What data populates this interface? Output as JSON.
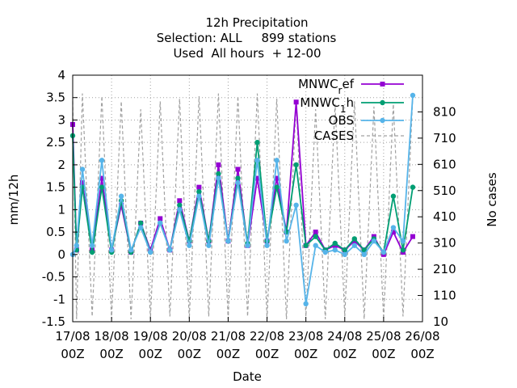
{
  "chart_data": {
    "type": "line",
    "title_lines": [
      "12h Precipitation",
      "Selection: ALL     899 stations",
      "Used  All hours  + 12-00"
    ],
    "xlabel": "Date",
    "ylabel": "mm/12h",
    "y2label": "No cases",
    "ylim": [
      -1.5,
      4
    ],
    "y2lim": [
      10,
      950
    ],
    "xlim": [
      0,
      9
    ],
    "x_unit": "days since 17/08 00Z",
    "yticks": [
      "-1.5",
      "-1",
      "-0.5",
      "0",
      "0.5",
      "1",
      "1.5",
      "2",
      "2.5",
      "3",
      "3.5",
      "4"
    ],
    "y2ticks": [
      "10",
      "110",
      "210",
      "310",
      "410",
      "510",
      "610",
      "710",
      "810"
    ],
    "xticks": [
      {
        "date": "17/08",
        "time": "00Z"
      },
      {
        "date": "18/08",
        "time": "00Z"
      },
      {
        "date": "19/08",
        "time": "00Z"
      },
      {
        "date": "20/08",
        "time": "00Z"
      },
      {
        "date": "21/08",
        "time": "00Z"
      },
      {
        "date": "22/08",
        "time": "00Z"
      },
      {
        "date": "23/08",
        "time": "00Z"
      },
      {
        "date": "24/08",
        "time": "00Z"
      },
      {
        "date": "25/08",
        "time": "00Z"
      },
      {
        "date": "26/08",
        "time": "00Z"
      }
    ],
    "legend_position": "top-right",
    "grid": true,
    "series": [
      {
        "name": "MNWC_ref",
        "label_base": "MNWC",
        "label_sub": "r",
        "label_rest": "ef",
        "color": "#9400d3",
        "marker": "filled-square",
        "axis": "left",
        "x": [
          0.0,
          0.1,
          0.25,
          0.5,
          0.75,
          1.0,
          1.25,
          1.5,
          1.75,
          2.0,
          2.25,
          2.5,
          2.75,
          3.0,
          3.25,
          3.5,
          3.75,
          4.0,
          4.25,
          4.5,
          4.75,
          5.0,
          5.25,
          5.5,
          5.75,
          6.0,
          6.25,
          6.5,
          6.75,
          7.0,
          7.25,
          7.5,
          7.75,
          8.0,
          8.25,
          8.5,
          8.75
        ],
        "y": [
          2.9,
          0.1,
          1.6,
          0.1,
          1.7,
          0.1,
          1.1,
          0.05,
          0.7,
          0.1,
          0.8,
          0.1,
          1.2,
          0.3,
          1.5,
          0.3,
          2.0,
          0.3,
          1.9,
          0.2,
          1.7,
          0.3,
          1.7,
          0.5,
          3.4,
          0.2,
          0.5,
          0.1,
          0.2,
          0.1,
          0.3,
          0.1,
          0.4,
          0.0,
          0.5,
          0.05,
          0.4
        ]
      },
      {
        "name": "MNWC_1h",
        "label_base": "MNWC",
        "label_sub": "1",
        "label_rest": "h",
        "color": "#009e73",
        "marker": "filled-circle",
        "axis": "left",
        "x": [
          0.0,
          0.1,
          0.25,
          0.5,
          0.75,
          1.0,
          1.25,
          1.5,
          1.75,
          2.0,
          2.25,
          2.5,
          2.75,
          3.0,
          3.25,
          3.5,
          3.75,
          4.0,
          4.25,
          4.5,
          4.75,
          5.0,
          5.25,
          5.5,
          5.75,
          6.0,
          6.25,
          6.5,
          6.75,
          7.0,
          7.25,
          7.5,
          7.75,
          8.0,
          8.25,
          8.5,
          8.75
        ],
        "y": [
          2.65,
          0.1,
          1.5,
          0.05,
          1.5,
          0.05,
          1.2,
          0.05,
          0.7,
          0.05,
          0.7,
          0.1,
          1.1,
          0.3,
          1.4,
          0.3,
          1.8,
          0.3,
          1.7,
          0.25,
          2.5,
          0.3,
          1.5,
          0.5,
          2.0,
          0.2,
          0.4,
          0.1,
          0.25,
          0.1,
          0.35,
          0.1,
          0.35,
          0.05,
          1.3,
          0.1,
          1.5
        ]
      },
      {
        "name": "OBS",
        "label_base": "OBS",
        "label_sub": "",
        "label_rest": "",
        "color": "#56b4e9",
        "marker": "filled-circle",
        "axis": "left",
        "x": [
          0.0,
          0.1,
          0.25,
          0.5,
          0.75,
          1.0,
          1.25,
          1.5,
          1.75,
          2.0,
          2.25,
          2.5,
          2.75,
          3.0,
          3.25,
          3.5,
          3.75,
          4.0,
          4.25,
          4.5,
          4.75,
          5.0,
          5.25,
          5.5,
          5.75,
          6.0,
          6.25,
          6.5,
          6.75,
          7.0,
          7.25,
          7.5,
          7.75,
          8.0,
          8.25,
          8.5,
          8.75
        ],
        "y": [
          0.0,
          0.2,
          1.9,
          0.2,
          2.1,
          0.1,
          1.3,
          0.1,
          0.6,
          0.05,
          0.7,
          0.1,
          1.0,
          0.2,
          1.3,
          0.2,
          1.7,
          0.3,
          1.6,
          0.2,
          2.1,
          0.2,
          2.1,
          0.3,
          1.1,
          -1.1,
          0.2,
          0.05,
          0.1,
          0.0,
          0.2,
          0.0,
          0.3,
          0.05,
          0.6,
          0.3,
          3.55
        ]
      },
      {
        "name": "CASES",
        "label_base": "CASES",
        "label_sub": "",
        "label_rest": "",
        "color": "#a0a0a0",
        "marker": "none",
        "dashed": true,
        "axis": "right",
        "x": [
          0.0,
          0.1,
          0.25,
          0.5,
          0.75,
          1.0,
          1.25,
          1.5,
          1.75,
          2.0,
          2.25,
          2.5,
          2.75,
          3.0,
          3.25,
          3.5,
          3.75,
          4.0,
          4.25,
          4.5,
          4.75,
          5.0,
          5.25,
          5.5,
          5.75,
          6.0,
          6.25,
          6.5,
          6.75,
          7.0,
          7.25,
          7.5,
          7.75,
          8.0,
          8.25,
          8.5,
          8.75
        ],
        "y": [
          850,
          20,
          880,
          30,
          870,
          20,
          850,
          20,
          820,
          20,
          850,
          30,
          860,
          20,
          870,
          30,
          880,
          20,
          870,
          30,
          880,
          20,
          860,
          20,
          850,
          30,
          820,
          20,
          840,
          30,
          850,
          20,
          830,
          20,
          840,
          30,
          870
        ]
      }
    ]
  }
}
